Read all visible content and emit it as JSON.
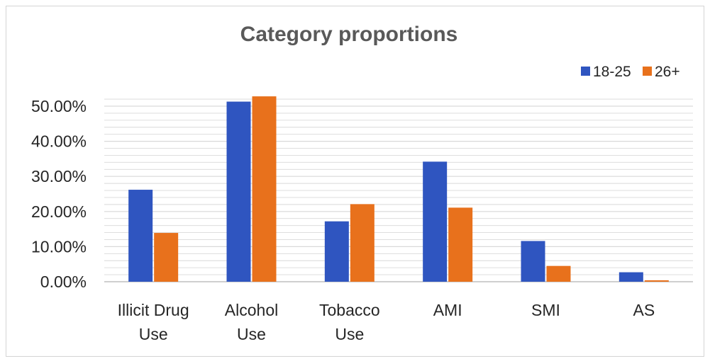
{
  "chart_data": {
    "type": "bar",
    "title": "Category proportions",
    "xlabel": "",
    "ylabel": "",
    "categories": [
      [
        "Illicit Drug",
        "Use"
      ],
      [
        "Alcohol",
        "Use"
      ],
      [
        "Tobacco",
        "Use"
      ],
      [
        "AMI"
      ],
      [
        "SMI"
      ],
      [
        "AS"
      ]
    ],
    "series": [
      {
        "name": "18-25",
        "color": "#2f55c0",
        "values": [
          26.2,
          51.3,
          17.2,
          34.2,
          11.6,
          2.7
        ]
      },
      {
        "name": "26+",
        "color": "#e8711c",
        "values": [
          13.9,
          52.8,
          22.1,
          21.1,
          4.5,
          0.4
        ]
      }
    ],
    "ylim": [
      0,
      52
    ],
    "yticks": [
      0,
      10,
      20,
      30,
      40,
      50
    ],
    "ytick_labels": [
      "0.00%",
      "10.00%",
      "20.00%",
      "30.00%",
      "40.00%",
      "50.00%"
    ],
    "grid": true,
    "gridline_color": "#d9d9d9",
    "legend_position": "top-right"
  }
}
